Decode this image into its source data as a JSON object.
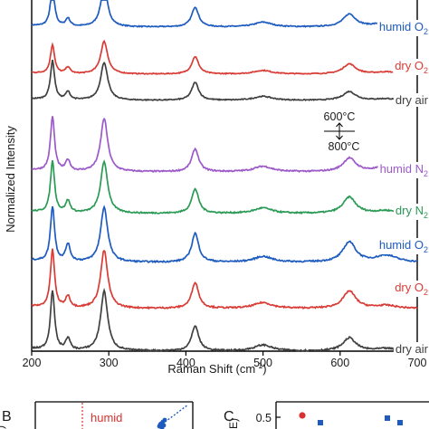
{
  "main_chart": {
    "xlabel_main": "Raman Shift (cm",
    "xlabel_sup": "-1",
    "xlabel_close": ")",
    "ylabel": "Normalized Intensity",
    "separator_top": "600°C",
    "separator_bottom": "800°C"
  },
  "panel_b": {
    "letter": "B",
    "label": "humid",
    "ylabel_fragment": "2",
    "ylabel_fragment_prefix": ")"
  },
  "panel_c": {
    "letter": "C",
    "ylabel_fragment": "E)",
    "tick_label": "0.5",
    "colors": {
      "red": "#d9312f",
      "blue": "#1e5bbf"
    }
  },
  "chart_data": {
    "type": "line",
    "title": "",
    "xlabel": "Raman Shift (cm-1)",
    "ylabel": "Normalized Intensity",
    "xlim": [
      200,
      700
    ],
    "xticks": [
      200,
      300,
      400,
      500,
      600,
      700
    ],
    "xtick_labels": [
      "200",
      "300",
      "400",
      "500",
      "600",
      "700"
    ],
    "yticks_shown": false,
    "grid": false,
    "legend": "inline labels at right end of each trace",
    "peak_positions": [
      227,
      247,
      294,
      412,
      500,
      612,
      660
    ],
    "series": [
      {
        "name": "humid O",
        "subscript": "2",
        "group": "600°C",
        "color": "#1d5bbf",
        "baseline": 0.0,
        "peaks": {
          "227": 1.0,
          "247": 0.2,
          "294": 1.0,
          "412": 0.5,
          "500": 0.12,
          "612": 0.32,
          "660": 0.12
        }
      },
      {
        "name": "dry O",
        "subscript": "2",
        "group": "600°C",
        "color": "#d93b35",
        "baseline": 0.0,
        "peaks": {
          "227": 0.8,
          "247": 0.18,
          "294": 0.9,
          "412": 0.48,
          "500": 0.1,
          "612": 0.28,
          "660": 0.06
        }
      },
      {
        "name": "dry air",
        "subscript": "",
        "group": "600°C",
        "color": "#404040",
        "baseline": 0.0,
        "peaks": {
          "227": 0.98,
          "247": 0.2,
          "294": 0.95,
          "412": 0.45,
          "500": 0.1,
          "612": 0.22,
          "660": 0.04
        }
      },
      {
        "name": "humid N",
        "subscript": "2",
        "group": "800°C",
        "color": "#9c59c9",
        "baseline": 0.0,
        "peaks": {
          "227": 1.0,
          "247": 0.2,
          "294": 0.98,
          "412": 0.42,
          "500": 0.1,
          "612": 0.25,
          "660": 0.1
        }
      },
      {
        "name": "dry N",
        "subscript": "2",
        "group": "800°C",
        "color": "#2a9a55",
        "baseline": 0.0,
        "peaks": {
          "227": 0.95,
          "247": 0.22,
          "294": 0.95,
          "412": 0.45,
          "500": 0.1,
          "612": 0.3,
          "660": 0.05
        }
      },
      {
        "name": "humid O",
        "subscript": "2",
        "group": "800°C",
        "color": "#1d5bbf",
        "baseline": 0.0,
        "peaks": {
          "227": 0.95,
          "247": 0.3,
          "294": 0.95,
          "412": 0.5,
          "500": 0.1,
          "612": 0.35,
          "660": 0.12
        }
      },
      {
        "name": "dry O",
        "subscript": "2",
        "group": "800°C",
        "color": "#d93b35",
        "baseline": 0.0,
        "peaks": {
          "227": 1.0,
          "247": 0.2,
          "294": 1.0,
          "412": 0.45,
          "500": 0.1,
          "612": 0.3,
          "660": 0.05
        }
      },
      {
        "name": "dry air",
        "subscript": "",
        "group": "800°C",
        "color": "#404040",
        "baseline": 0.0,
        "peaks": {
          "227": 1.0,
          "247": 0.2,
          "294": 1.0,
          "412": 0.42,
          "500": 0.1,
          "612": 0.22,
          "660": 0.04
        }
      }
    ]
  }
}
